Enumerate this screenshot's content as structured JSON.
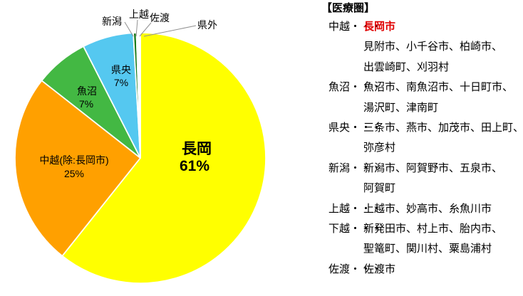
{
  "chart_data": {
    "type": "pie",
    "title": "",
    "unit": "%",
    "direction": "clockwise",
    "start_angle_deg": -90,
    "legend_position": "none",
    "slices": [
      {
        "name": "長岡",
        "pct_label": "61%",
        "value": 60.7,
        "color": "#FFFF00"
      },
      {
        "name": "中越(除:長岡市)",
        "pct_label": "25%",
        "value": 24.9,
        "color": "#FFA000"
      },
      {
        "name": "魚沼",
        "pct_label": "7%",
        "value": 6.9,
        "color": "#43B843"
      },
      {
        "name": "県央",
        "pct_label": "7%",
        "value": 6.6,
        "color": "#55C8F0"
      },
      {
        "name": "新潟",
        "pct_label": "",
        "value": 0.4,
        "color": "#1A7A1A"
      },
      {
        "name": "上越",
        "pct_label": "",
        "value": 0.2,
        "color": "#FFFFFF"
      },
      {
        "name": "佐渡",
        "pct_label": "",
        "value": 0.15,
        "color": "#FFFFFF"
      },
      {
        "name": "県外",
        "pct_label": "",
        "value": 0.15,
        "color": "#FFFFFF"
      }
    ]
  },
  "legend": {
    "title": "【医療圏】",
    "highlight_color": "#E00000",
    "rows": [
      {
        "label": "中越・・・",
        "text": "長岡市",
        "highlight": true
      },
      {
        "label": "",
        "text": "見附市、小千谷市、柏崎市、",
        "highlight": false
      },
      {
        "label": "",
        "text": "出雲崎町、刈羽村",
        "highlight": false
      },
      {
        "label": "魚沼・・・",
        "text": "魚沼市、南魚沼市、十日町市、",
        "highlight": false
      },
      {
        "label": "",
        "text": "湯沢町、津南町",
        "highlight": false
      },
      {
        "label": "県央・・・",
        "text": "三条市、燕市、加茂市、田上町、",
        "highlight": false
      },
      {
        "label": "",
        "text": "弥彦村",
        "highlight": false
      },
      {
        "label": "新潟・・・",
        "text": "新潟市、阿賀野市、五泉市、",
        "highlight": false
      },
      {
        "label": "",
        "text": "阿賀町",
        "highlight": false
      },
      {
        "label": "上越・・・",
        "text": "上越市、妙高市、糸魚川市",
        "highlight": false
      },
      {
        "label": "下越・・・",
        "text": "新発田市、村上市、胎内市、",
        "highlight": false
      },
      {
        "label": "",
        "text": "聖篭町、関川村、粟島浦村",
        "highlight": false
      },
      {
        "label": "佐渡・・・",
        "text": "佐渡市",
        "highlight": false
      }
    ]
  }
}
